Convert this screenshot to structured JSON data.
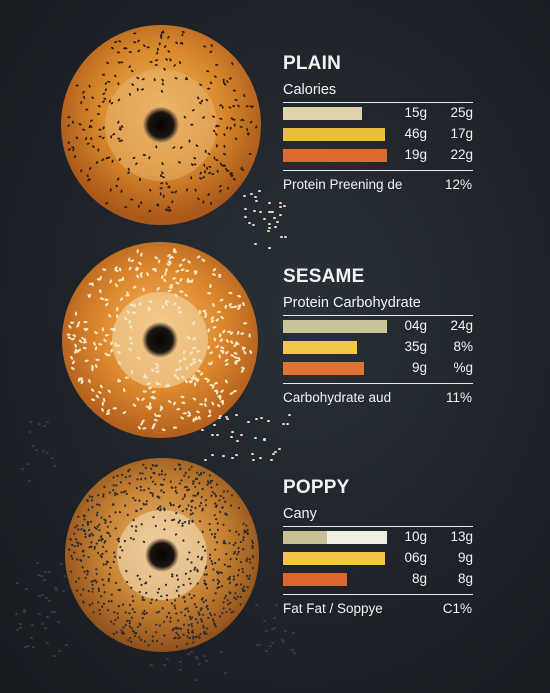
{
  "panels": [
    {
      "title": "PLAIN",
      "subtitle": "Calories",
      "bars": [
        {
          "fill": 0.76,
          "color": "#ddd3a8",
          "v1": "15g",
          "v2": "25g"
        },
        {
          "fill": 0.98,
          "color": "#e9be3c",
          "v1": "46g",
          "v2": "17g"
        },
        {
          "fill": 1.0,
          "color": "#dd6a30",
          "v1": "19g",
          "v2": "22g"
        }
      ],
      "footer_label": "Protein Preening de",
      "footer_pct": "12%"
    },
    {
      "title": "SESAME",
      "subtitle": "Protein Carbohydrate",
      "bars": [
        {
          "fill": 1.0,
          "color": "#c9c39a",
          "v1": "04g",
          "v2": "24g"
        },
        {
          "fill": 0.71,
          "color": "#f0c84a",
          "v1": "35g",
          "v2": "8%"
        },
        {
          "fill": 0.78,
          "color": "#df7332",
          "v1": "9g",
          "v2": "%g"
        }
      ],
      "footer_label": "Carbohydrate aud",
      "footer_pct": "11%"
    },
    {
      "title": "POPPY",
      "subtitle": "Cany",
      "bars": [
        {
          "fill": 0.42,
          "color": "#c7c095",
          "v1": "10g",
          "v2": "13g"
        },
        {
          "fill": 0.98,
          "color": "#efc647",
          "v1": "06g",
          "v2": "9g"
        },
        {
          "fill": 0.62,
          "color": "#dd6530",
          "v1": "8g",
          "v2": "8g"
        }
      ],
      "footer_label": "Fat Fat / Soppye",
      "footer_pct": "C1%"
    }
  ],
  "colors": {
    "background": "#1e2329",
    "bar_remainder": "#f2ede2",
    "text": "#f2f2f2"
  }
}
